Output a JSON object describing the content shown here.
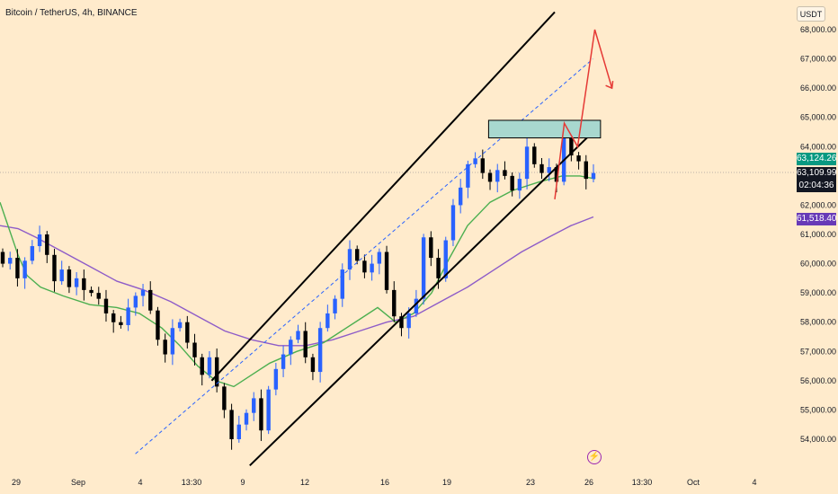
{
  "header": {
    "title": "Bitcoin / TetherUS, 4h, BINANCE",
    "currency": "USDT"
  },
  "colors": {
    "background": "#FFEBCC",
    "up": "#2962FF",
    "down": "#000000",
    "ma_fast": "#4CAF50",
    "ma_slow": "#8E5CC8",
    "channel": "#000000",
    "projection": "#E53935",
    "zone": "#A8D8CF"
  },
  "price_tags": {
    "tag1": "63,124.26",
    "tag2": "63,109.99",
    "countdown": "02:04:36",
    "ma_value": "61,518.40"
  },
  "chart_data": {
    "type": "candlestick",
    "y_axis": {
      "range": [
        53300,
        68500
      ],
      "ticks": [
        "54,000.00",
        "55,000.00",
        "56,000.00",
        "57,000.00",
        "58,000.00",
        "59,000.00",
        "60,000.00",
        "61,000.00",
        "62,000.00",
        "63,000.00",
        "64,000.00",
        "65,000.00",
        "66,000.00",
        "67,000.00",
        "68,000.00"
      ]
    },
    "x_axis": {
      "ticks": [
        "29",
        "Sep",
        "4",
        "13:30",
        "9",
        "12",
        "16",
        "19",
        "23",
        "26",
        "13:30",
        "Oct",
        "4"
      ]
    },
    "candles_close": [
      60000,
      60200,
      59500,
      60100,
      60600,
      61000,
      60300,
      59400,
      59800,
      59200,
      59500,
      59100,
      59000,
      58800,
      58300,
      58000,
      57900,
      58500,
      58900,
      59100,
      58400,
      57400,
      56900,
      57800,
      58000,
      57300,
      56800,
      56200,
      56800,
      55800,
      55000,
      54000,
      54500,
      54900,
      55400,
      54300,
      55700,
      56400,
      56900,
      57400,
      57700,
      56800,
      56300,
      57800,
      58300,
      58800,
      59800,
      60500,
      60100,
      59700,
      60000,
      60400,
      59100,
      58200,
      57800,
      58300,
      58800,
      60900,
      60200,
      59500,
      60800,
      62000,
      62600,
      63400,
      63600,
      63100,
      62800,
      63200,
      63000,
      62500,
      62900,
      64000,
      63400,
      63100,
      63300,
      62800,
      64300,
      63700,
      63500,
      62900,
      63100
    ],
    "ma_fast_points": [
      [
        0,
        62100
      ],
      [
        10,
        61200
      ],
      [
        20,
        60300
      ],
      [
        30,
        59600
      ],
      [
        45,
        59200
      ],
      [
        70,
        58900
      ],
      [
        100,
        58600
      ],
      [
        130,
        58500
      ],
      [
        155,
        58300
      ],
      [
        180,
        57800
      ],
      [
        200,
        57200
      ],
      [
        220,
        56500
      ],
      [
        240,
        56000
      ],
      [
        260,
        55800
      ],
      [
        280,
        56200
      ],
      [
        300,
        56600
      ],
      [
        330,
        57000
      ],
      [
        360,
        57300
      ],
      [
        380,
        57700
      ],
      [
        400,
        58100
      ],
      [
        420,
        58500
      ],
      [
        440,
        58000
      ],
      [
        460,
        58300
      ],
      [
        480,
        59000
      ],
      [
        500,
        60200
      ],
      [
        520,
        61300
      ],
      [
        545,
        62100
      ],
      [
        570,
        62500
      ],
      [
        600,
        62800
      ],
      [
        625,
        63000
      ],
      [
        645,
        63000
      ],
      [
        662,
        62900
      ]
    ],
    "ma_slow_points": [
      [
        0,
        61300
      ],
      [
        20,
        61200
      ],
      [
        40,
        60900
      ],
      [
        70,
        60400
      ],
      [
        100,
        59900
      ],
      [
        130,
        59400
      ],
      [
        160,
        59100
      ],
      [
        190,
        58700
      ],
      [
        220,
        58200
      ],
      [
        250,
        57700
      ],
      [
        280,
        57400
      ],
      [
        310,
        57200
      ],
      [
        340,
        57200
      ],
      [
        370,
        57400
      ],
      [
        400,
        57700
      ],
      [
        430,
        58000
      ],
      [
        460,
        58200
      ],
      [
        490,
        58700
      ],
      [
        520,
        59200
      ],
      [
        550,
        59800
      ],
      [
        580,
        60400
      ],
      [
        610,
        60900
      ],
      [
        635,
        61300
      ],
      [
        660,
        61600
      ]
    ],
    "channel": {
      "upper": [
        [
          8,
          56000
        ],
        [
          26,
          68600
        ]
      ],
      "lower": [
        [
          10,
          53100
        ],
        [
          28,
          64500
        ]
      ],
      "mid": [
        [
          4,
          53500
        ],
        [
          28,
          67000
        ]
      ]
    },
    "resistance_zone": [
      64300,
      64900
    ],
    "projection": [
      [
        26,
        62200
      ],
      [
        26.5,
        64800
      ],
      [
        27.2,
        64000
      ],
      [
        28.1,
        68000
      ],
      [
        29.0,
        66000
      ]
    ]
  }
}
